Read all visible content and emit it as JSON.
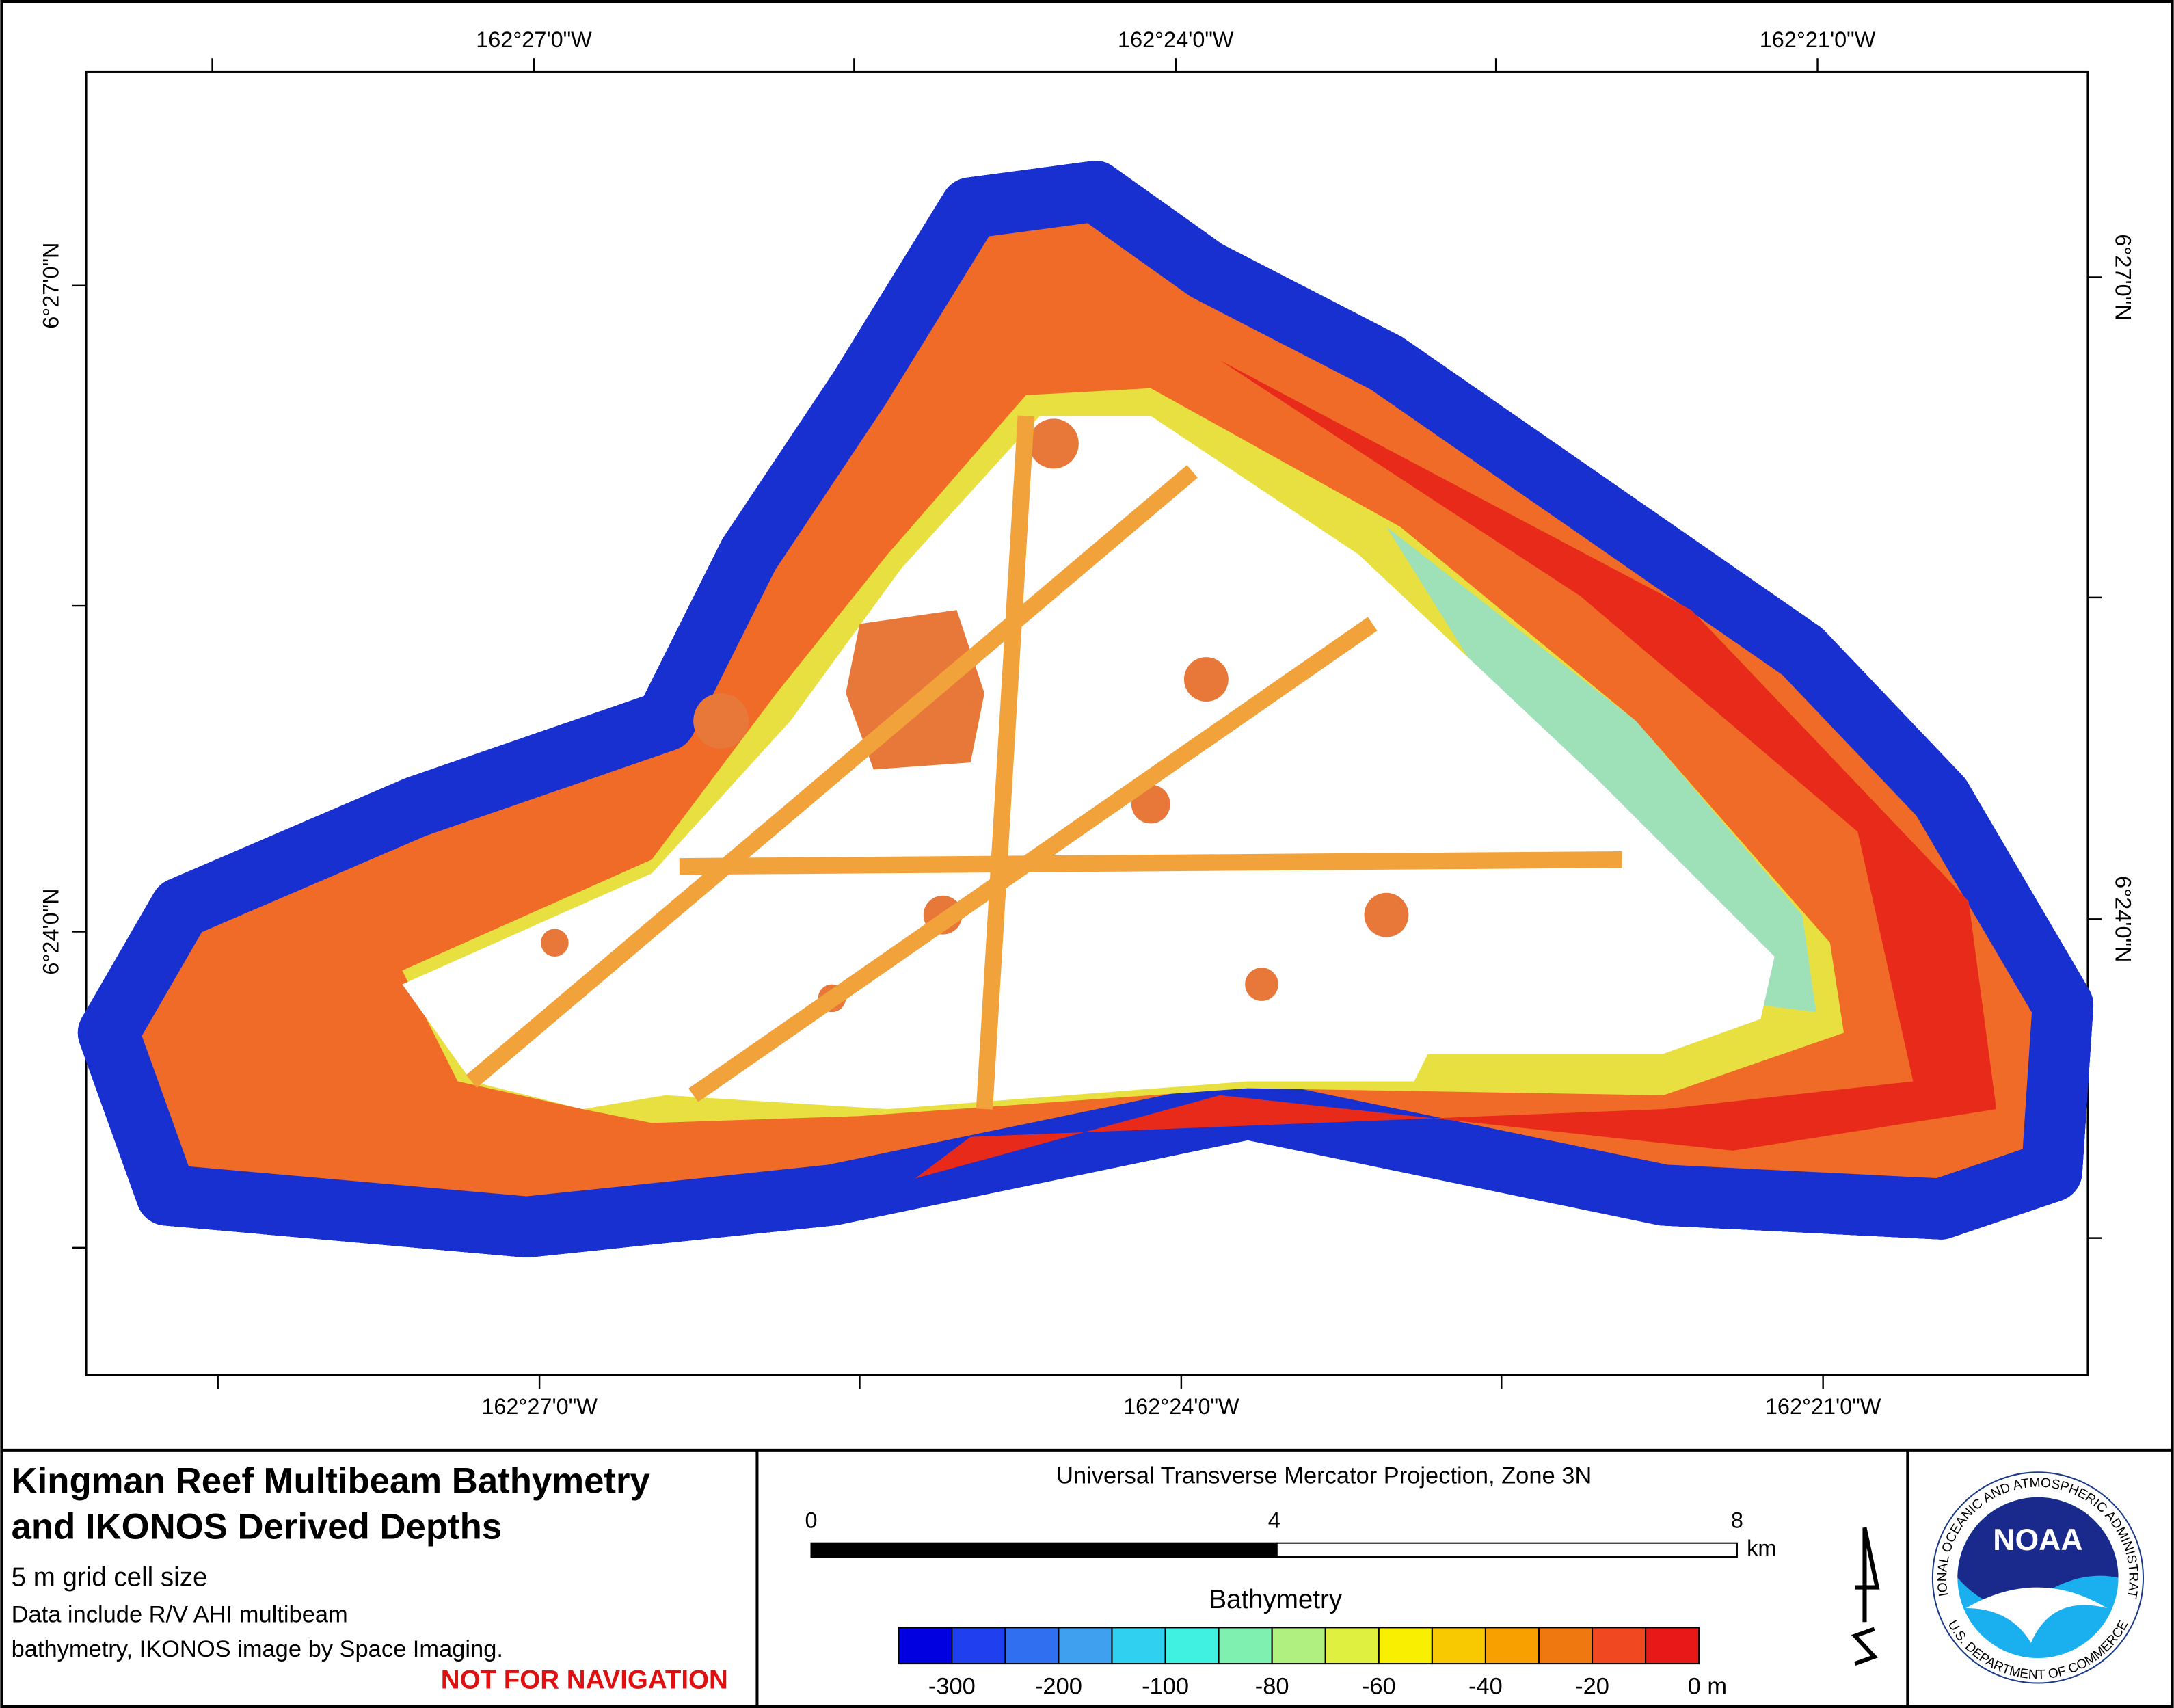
{
  "map": {
    "lon_labels_top": [
      "162°27'0\"W",
      "162°24'0\"W",
      "162°21'0\"W"
    ],
    "lon_labels_bottom": [
      "162°27'0\"W",
      "162°24'0\"W",
      "162°21'0\"W"
    ],
    "lat_labels_left": [
      "6°27'0\"N",
      "6°24'0\"N"
    ],
    "lat_labels_right": [
      "6°27'0\"N",
      "6°24'0\"N"
    ]
  },
  "title": {
    "line1": "Kingman Reef Multibeam Bathymetry",
    "line2": "and IKONOS Derived Depths"
  },
  "notes": [
    "5 m grid cell size",
    "Data include R/V AHI multibeam",
    "bathymetry, IKONOS image by Space Imaging."
  ],
  "warning": "NOT FOR NAVIGATION",
  "projection": "Universal Transverse Mercator Projection, Zone 3N",
  "scale_bar": {
    "labels": [
      "0",
      "4",
      "8"
    ],
    "unit": "km"
  },
  "legend": {
    "title": "Bathymetry",
    "colors": [
      "#0000e0",
      "#2040f0",
      "#3070f0",
      "#40a0f0",
      "#30d0f0",
      "#40f0e0",
      "#80f0b0",
      "#b0f080",
      "#e0f040",
      "#f8f000",
      "#f8c800",
      "#f8a000",
      "#f07810",
      "#f04820",
      "#e81818"
    ],
    "labels": [
      "-300",
      "-200",
      "-100",
      "-80",
      "-60",
      "-40",
      "-20",
      "0 m"
    ]
  },
  "logo": {
    "abbr": "NOAA",
    "ring_top": "NATIONAL OCEANIC AND ATMOSPHERIC ADMINISTRATION",
    "ring_bottom": "U.S. DEPARTMENT OF COMMERCE"
  }
}
